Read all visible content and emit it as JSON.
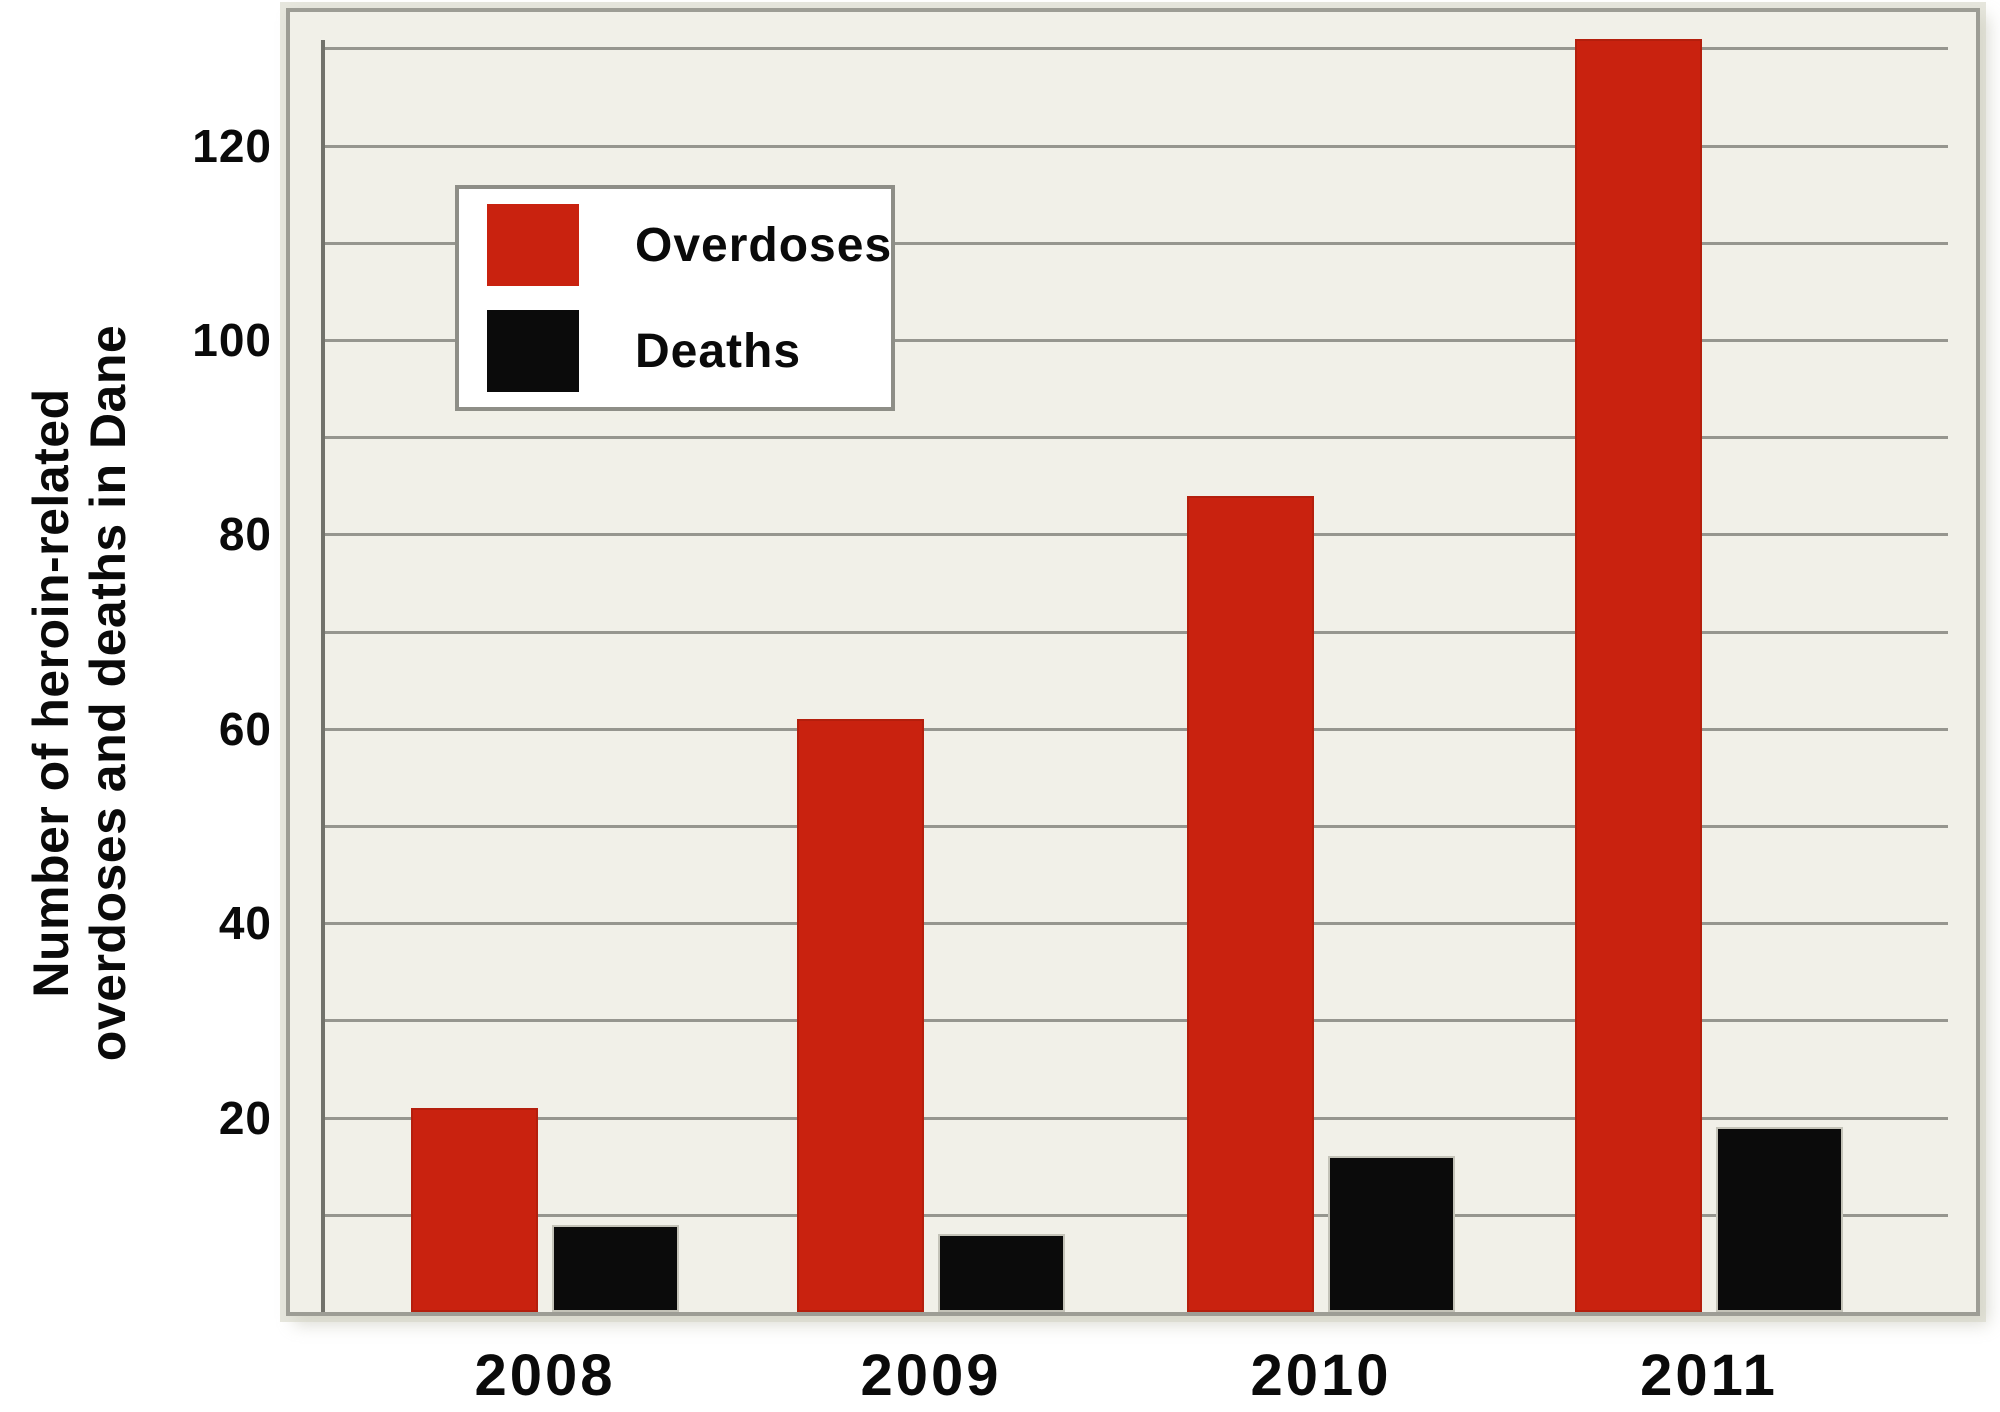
{
  "chart_data": {
    "type": "bar",
    "categories": [
      "2008",
      "2009",
      "2010",
      "2011"
    ],
    "series": [
      {
        "name": "Overdoses",
        "color": "#c9220f",
        "values": [
          21,
          61,
          84,
          131
        ]
      },
      {
        "name": "Deaths",
        "color": "#0b0b0b",
        "values": [
          9,
          8,
          16,
          19
        ]
      }
    ],
    "ylabel_lines": [
      "Number of heroin-related",
      "overdoses and deaths in Dane"
    ],
    "yticks": [
      20,
      40,
      60,
      80,
      100,
      120
    ],
    "gridline_values": [
      10,
      20,
      30,
      40,
      50,
      60,
      70,
      80,
      90,
      100,
      110,
      120,
      130
    ],
    "ylim": [
      0,
      135
    ],
    "grid": true,
    "legend_position": "upper-left",
    "colors": {
      "plot_background": "#f1f0e8",
      "gridline": "#8e8e87",
      "axis_line": "#72726b",
      "frame_border": "#9d9d95",
      "overdoses_red": "#c9220f",
      "deaths_black": "#0b0b0b",
      "text": "#0a0a0a"
    }
  }
}
